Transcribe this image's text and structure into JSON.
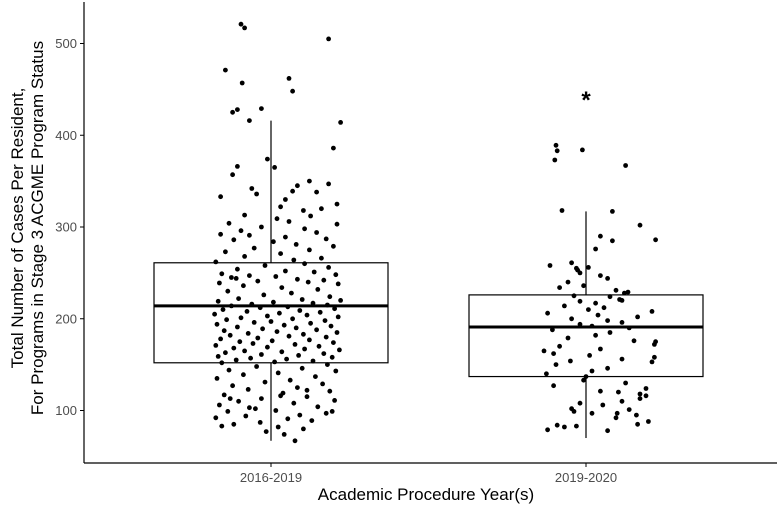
{
  "chart_data": {
    "type": "boxplot",
    "xlabel": "Academic Procedure Year(s)",
    "ylabel_lines": [
      "Total Number of Cases Per Resident,",
      "For Programs in Stage 3 ACGME Program Status"
    ],
    "categories": [
      "2016-2019",
      "2019-2020"
    ],
    "y_ticks": [
      100,
      200,
      300,
      400,
      500
    ],
    "ylim": [
      50,
      545
    ],
    "grid": false,
    "boxes": [
      {
        "category": "2016-2019",
        "whisker_low": 67,
        "q1": 152,
        "median": 214,
        "q3": 261,
        "whisker_high": 416
      },
      {
        "category": "2019-2020",
        "whisker_low": 70,
        "q1": 137,
        "median": 191,
        "q3": 226,
        "whisker_high": 317
      }
    ],
    "annotations": [
      {
        "category": "2019-2020",
        "text": "*",
        "y": 445
      }
    ],
    "points": [
      {
        "category": "2016-2019",
        "points": [
          [
            -0.25,
            521
          ],
          [
            -0.22,
            517
          ],
          [
            0.48,
            505
          ],
          [
            -0.38,
            471
          ],
          [
            0.15,
            462
          ],
          [
            -0.24,
            457
          ],
          [
            0.18,
            448
          ],
          [
            -0.08,
            429
          ],
          [
            -0.32,
            425
          ],
          [
            -0.28,
            428
          ],
          [
            0.58,
            414
          ],
          [
            -0.18,
            416
          ],
          [
            0.52,
            386
          ],
          [
            -0.03,
            374
          ],
          [
            0.03,
            365
          ],
          [
            -0.28,
            366
          ],
          [
            -0.32,
            357
          ],
          [
            0.32,
            350
          ],
          [
            0.48,
            347
          ],
          [
            0.22,
            345
          ],
          [
            -0.16,
            342
          ],
          [
            0.18,
            339
          ],
          [
            0.38,
            338
          ],
          [
            -0.12,
            336
          ],
          [
            -0.42,
            333
          ],
          [
            0.12,
            330
          ],
          [
            0.55,
            325
          ],
          [
            0.08,
            322
          ],
          [
            0.42,
            320
          ],
          [
            0.27,
            318
          ],
          [
            -0.22,
            313
          ],
          [
            0.33,
            312
          ],
          [
            0.05,
            309
          ],
          [
            0.15,
            306
          ],
          [
            -0.35,
            304
          ],
          [
            0.55,
            303
          ],
          [
            -0.08,
            300
          ],
          [
            0.28,
            298
          ],
          [
            -0.25,
            296
          ],
          [
            0.38,
            294
          ],
          [
            -0.42,
            292
          ],
          [
            -0.18,
            291
          ],
          [
            0.12,
            289
          ],
          [
            0.46,
            287
          ],
          [
            -0.31,
            286
          ],
          [
            0.02,
            284
          ],
          [
            0.21,
            281
          ],
          [
            0.52,
            279
          ],
          [
            -0.14,
            277
          ],
          [
            0.32,
            275
          ],
          [
            -0.38,
            273
          ],
          [
            0.08,
            271
          ],
          [
            -0.22,
            268
          ],
          [
            0.42,
            266
          ],
          [
            0.19,
            264
          ],
          [
            -0.46,
            262
          ],
          [
            0.28,
            260
          ],
          [
            -0.05,
            258
          ],
          [
            0.48,
            256
          ],
          [
            -0.28,
            254
          ],
          [
            0.12,
            252
          ],
          [
            0.36,
            251
          ],
          [
            -0.41,
            249
          ],
          [
            0.54,
            248
          ],
          [
            -0.18,
            247
          ],
          [
            0.04,
            246
          ],
          [
            -0.33,
            245
          ],
          [
            -0.29,
            244
          ],
          [
            0.22,
            243
          ],
          [
            0.44,
            242
          ],
          [
            -0.11,
            241
          ],
          [
            0.31,
            240
          ],
          [
            -0.43,
            239
          ],
          [
            0.56,
            238
          ],
          [
            -0.23,
            236
          ],
          [
            0.09,
            234
          ],
          [
            0.39,
            232
          ],
          [
            -0.36,
            230
          ],
          [
            0.17,
            228
          ],
          [
            -0.06,
            226
          ],
          [
            0.49,
            224
          ],
          [
            -0.27,
            222
          ],
          [
            0.26,
            221
          ],
          [
            0.58,
            220
          ],
          [
            -0.44,
            219
          ],
          [
            0.02,
            218
          ],
          [
            0.35,
            217
          ],
          [
            -0.16,
            216
          ],
          [
            0.47,
            215
          ],
          [
            -0.33,
            214
          ],
          [
            0.14,
            213
          ],
          [
            -0.09,
            212
          ],
          [
            0.53,
            211
          ],
          [
            -0.4,
            210
          ],
          [
            0.24,
            209
          ],
          [
            -0.2,
            208
          ],
          [
            0.41,
            207
          ],
          [
            0.07,
            206
          ],
          [
            -0.47,
            205
          ],
          [
            0.3,
            204
          ],
          [
            -0.03,
            203
          ],
          [
            0.56,
            202
          ],
          [
            -0.25,
            201
          ],
          [
            0.18,
            200
          ],
          [
            -0.37,
            199
          ],
          [
            0.45,
            198
          ],
          [
            0.0,
            197
          ],
          [
            -0.14,
            196
          ],
          [
            0.33,
            195
          ],
          [
            -0.45,
            194
          ],
          [
            0.11,
            193
          ],
          [
            0.5,
            192
          ],
          [
            -0.28,
            191
          ],
          [
            0.21,
            190
          ],
          [
            -0.07,
            189
          ],
          [
            0.38,
            188
          ],
          [
            -0.39,
            187
          ],
          [
            0.05,
            186
          ],
          [
            0.55,
            185
          ],
          [
            -0.19,
            184
          ],
          [
            0.27,
            183
          ],
          [
            -0.34,
            182
          ],
          [
            0.15,
            181
          ],
          [
            0.46,
            180
          ],
          [
            -0.11,
            179
          ],
          [
            -0.42,
            178
          ],
          [
            0.32,
            177
          ],
          [
            0.01,
            176
          ],
          [
            -0.26,
            175
          ],
          [
            0.52,
            174
          ],
          [
            -0.15,
            173
          ],
          [
            0.2,
            172
          ],
          [
            -0.46,
            171
          ],
          [
            0.4,
            170
          ],
          [
            -0.03,
            169
          ],
          [
            -0.31,
            168
          ],
          [
            0.28,
            167
          ],
          [
            0.57,
            166
          ],
          [
            -0.22,
            165
          ],
          [
            0.09,
            164
          ],
          [
            -0.38,
            163
          ],
          [
            0.44,
            162
          ],
          [
            -0.08,
            161
          ],
          [
            0.23,
            160
          ],
          [
            -0.44,
            159
          ],
          [
            0.51,
            158
          ],
          [
            -0.17,
            157
          ],
          [
            0.13,
            156
          ],
          [
            -0.29,
            155
          ],
          [
            0.35,
            154
          ],
          [
            0.03,
            153
          ],
          [
            -0.41,
            152
          ],
          [
            0.47,
            150
          ],
          [
            -0.12,
            148
          ],
          [
            0.26,
            146
          ],
          [
            -0.35,
            144
          ],
          [
            0.54,
            143
          ],
          [
            0.06,
            141
          ],
          [
            -0.23,
            139
          ],
          [
            0.37,
            137
          ],
          [
            -0.45,
            135
          ],
          [
            0.16,
            133
          ],
          [
            -0.05,
            131
          ],
          [
            0.43,
            129
          ],
          [
            -0.32,
            127
          ],
          [
            0.22,
            125
          ],
          [
            -0.19,
            123
          ],
          [
            0.49,
            121
          ],
          [
            0.1,
            119
          ],
          [
            -0.39,
            117
          ],
          [
            0.3,
            115
          ],
          [
            -0.08,
            113
          ],
          [
            0.53,
            111
          ],
          [
            -0.27,
            110
          ],
          [
            0.19,
            108
          ],
          [
            -0.43,
            106
          ],
          [
            0.39,
            104
          ],
          [
            -0.13,
            102
          ],
          [
            0.04,
            100
          ],
          [
            -0.36,
            99
          ],
          [
            0.46,
            97
          ],
          [
            0.24,
            95
          ],
          [
            -0.21,
            94
          ],
          [
            -0.46,
            92
          ],
          [
            0.14,
            91
          ],
          [
            0.34,
            89
          ],
          [
            -0.09,
            87
          ],
          [
            -0.31,
            85
          ],
          [
            0.06,
            82
          ],
          [
            0.27,
            80
          ],
          [
            -0.41,
            83
          ],
          [
            -0.04,
            77
          ],
          [
            0.11,
            74
          ],
          [
            0.2,
            67
          ],
          [
            -0.18,
            103
          ],
          [
            0.51,
            99
          ],
          [
            -0.34,
            113
          ],
          [
            0.08,
            116
          ],
          [
            0.3,
            122
          ]
        ]
      },
      {
        "category": "2019-2020",
        "points": [
          [
            -0.25,
            389
          ],
          [
            -0.24,
            383
          ],
          [
            -0.03,
            384
          ],
          [
            -0.26,
            373
          ],
          [
            0.33,
            367
          ],
          [
            -0.2,
            318
          ],
          [
            0.22,
            317
          ],
          [
            0.45,
            302
          ],
          [
            0.12,
            290
          ],
          [
            0.22,
            285
          ],
          [
            0.58,
            286
          ],
          [
            0.08,
            276
          ],
          [
            -0.12,
            261
          ],
          [
            0.02,
            256
          ],
          [
            -0.08,
            255
          ],
          [
            -0.3,
            258
          ],
          [
            -0.07,
            253
          ],
          [
            -0.05,
            250
          ],
          [
            0.12,
            247
          ],
          [
            0.18,
            244
          ],
          [
            -0.15,
            240
          ],
          [
            -0.02,
            236
          ],
          [
            -0.22,
            234
          ],
          [
            0.25,
            231
          ],
          [
            0.35,
            229
          ],
          [
            0.32,
            228
          ],
          [
            -0.1,
            225
          ],
          [
            0.2,
            224
          ],
          [
            0.28,
            221
          ],
          [
            0.3,
            220
          ],
          [
            -0.05,
            219
          ],
          [
            0.08,
            217
          ],
          [
            -0.18,
            214
          ],
          [
            0.15,
            212
          ],
          [
            0.02,
            210
          ],
          [
            0.55,
            208
          ],
          [
            -0.32,
            206
          ],
          [
            0.1,
            204
          ],
          [
            0.43,
            202
          ],
          [
            -0.12,
            200
          ],
          [
            0.18,
            198
          ],
          [
            0.3,
            196
          ],
          [
            -0.05,
            194
          ],
          [
            0.05,
            192
          ],
          [
            0.36,
            190
          ],
          [
            -0.28,
            188
          ],
          [
            0.2,
            185
          ],
          [
            0.08,
            182
          ],
          [
            -0.15,
            179
          ],
          [
            0.4,
            176
          ],
          [
            0.58,
            175
          ],
          [
            0.57,
            172
          ],
          [
            -0.22,
            170
          ],
          [
            0.12,
            167
          ],
          [
            -0.35,
            165
          ],
          [
            -0.27,
            162
          ],
          [
            0.03,
            160
          ],
          [
            0.57,
            158
          ],
          [
            0.3,
            156
          ],
          [
            -0.13,
            154
          ],
          [
            0.55,
            153
          ],
          [
            -0.25,
            150
          ],
          [
            0.18,
            146
          ],
          [
            0.05,
            143
          ],
          [
            -0.33,
            140
          ],
          [
            0.0,
            137
          ],
          [
            -0.02,
            133
          ],
          [
            0.33,
            130
          ],
          [
            -0.27,
            127
          ],
          [
            0.5,
            124
          ],
          [
            0.12,
            121
          ],
          [
            0.27,
            120
          ],
          [
            0.45,
            118
          ],
          [
            0.5,
            116
          ],
          [
            0.45,
            113
          ],
          [
            0.3,
            110
          ],
          [
            -0.05,
            108
          ],
          [
            0.14,
            106
          ],
          [
            -0.12,
            102
          ],
          [
            0.36,
            101
          ],
          [
            -0.1,
            99
          ],
          [
            0.05,
            97
          ],
          [
            0.42,
            95
          ],
          [
            0.25,
            92
          ],
          [
            0.52,
            88
          ],
          [
            0.43,
            85
          ],
          [
            -0.08,
            83
          ],
          [
            -0.18,
            82
          ],
          [
            -0.32,
            79
          ],
          [
            0.18,
            78
          ],
          [
            -0.24,
            84
          ],
          [
            0.26,
            97
          ]
        ]
      }
    ]
  }
}
